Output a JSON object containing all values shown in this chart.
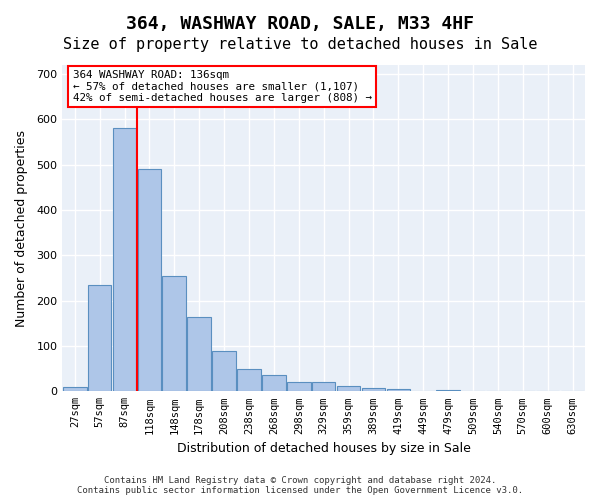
{
  "title1": "364, WASHWAY ROAD, SALE, M33 4HF",
  "title2": "Size of property relative to detached houses in Sale",
  "xlabel": "Distribution of detached houses by size in Sale",
  "ylabel": "Number of detached properties",
  "categories": [
    "27sqm",
    "57sqm",
    "87sqm",
    "118sqm",
    "148sqm",
    "178sqm",
    "208sqm",
    "238sqm",
    "268sqm",
    "298sqm",
    "329sqm",
    "359sqm",
    "389sqm",
    "419sqm",
    "449sqm",
    "479sqm",
    "509sqm",
    "540sqm",
    "570sqm",
    "600sqm",
    "630sqm"
  ],
  "values": [
    10,
    235,
    580,
    490,
    255,
    165,
    90,
    50,
    35,
    20,
    20,
    12,
    8,
    5,
    0,
    3,
    0,
    0,
    0,
    0,
    0
  ],
  "bar_color": "#aec6e8",
  "bar_edge_color": "#5a8fc0",
  "ref_line_color": "red",
  "annotation_text": "364 WASHWAY ROAD: 136sqm\n← 57% of detached houses are smaller (1,107)\n42% of semi-detached houses are larger (808) →",
  "ylim": [
    0,
    720
  ],
  "yticks": [
    0,
    100,
    200,
    300,
    400,
    500,
    600,
    700
  ],
  "background_color": "#eaf0f8",
  "grid_color": "#ffffff",
  "footer": "Contains HM Land Registry data © Crown copyright and database right 2024.\nContains public sector information licensed under the Open Government Licence v3.0.",
  "title_fontsize": 13,
  "subtitle_fontsize": 11
}
